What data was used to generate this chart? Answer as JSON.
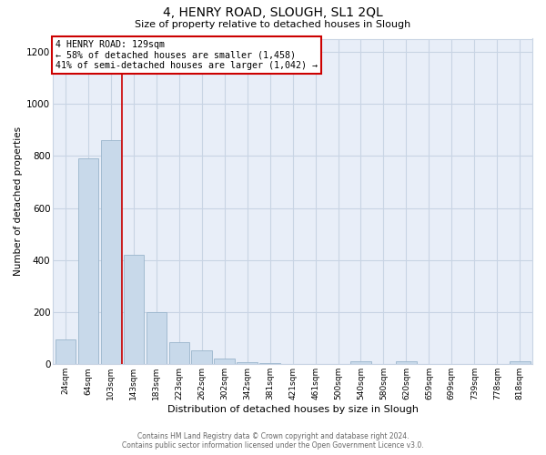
{
  "title": "4, HENRY ROAD, SLOUGH, SL1 2QL",
  "subtitle": "Size of property relative to detached houses in Slough",
  "xlabel": "Distribution of detached houses by size in Slough",
  "ylabel": "Number of detached properties",
  "bar_labels": [
    "24sqm",
    "64sqm",
    "103sqm",
    "143sqm",
    "183sqm",
    "223sqm",
    "262sqm",
    "302sqm",
    "342sqm",
    "381sqm",
    "421sqm",
    "461sqm",
    "500sqm",
    "540sqm",
    "580sqm",
    "620sqm",
    "659sqm",
    "699sqm",
    "739sqm",
    "778sqm",
    "818sqm"
  ],
  "bar_values": [
    95,
    790,
    860,
    420,
    200,
    85,
    52,
    22,
    8,
    3,
    1,
    0,
    0,
    12,
    0,
    10,
    0,
    0,
    0,
    0,
    10
  ],
  "bar_color": "#c8d9ea",
  "bar_edge_color": "#9ab5cc",
  "annotation_text_line1": "4 HENRY ROAD: 129sqm",
  "annotation_text_line2": "← 58% of detached houses are smaller (1,458)",
  "annotation_text_line3": "41% of semi-detached houses are larger (1,042) →",
  "vline_color": "#cc0000",
  "annotation_box_color": "#ffffff",
  "annotation_box_edge": "#cc0000",
  "ylim": [
    0,
    1250
  ],
  "yticks": [
    0,
    200,
    400,
    600,
    800,
    1000,
    1200
  ],
  "grid_color": "#c8d4e4",
  "plot_bg_color": "#e8eef8",
  "fig_bg_color": "#ffffff",
  "footer_line1": "Contains HM Land Registry data © Crown copyright and database right 2024.",
  "footer_line2": "Contains public sector information licensed under the Open Government Licence v3.0."
}
